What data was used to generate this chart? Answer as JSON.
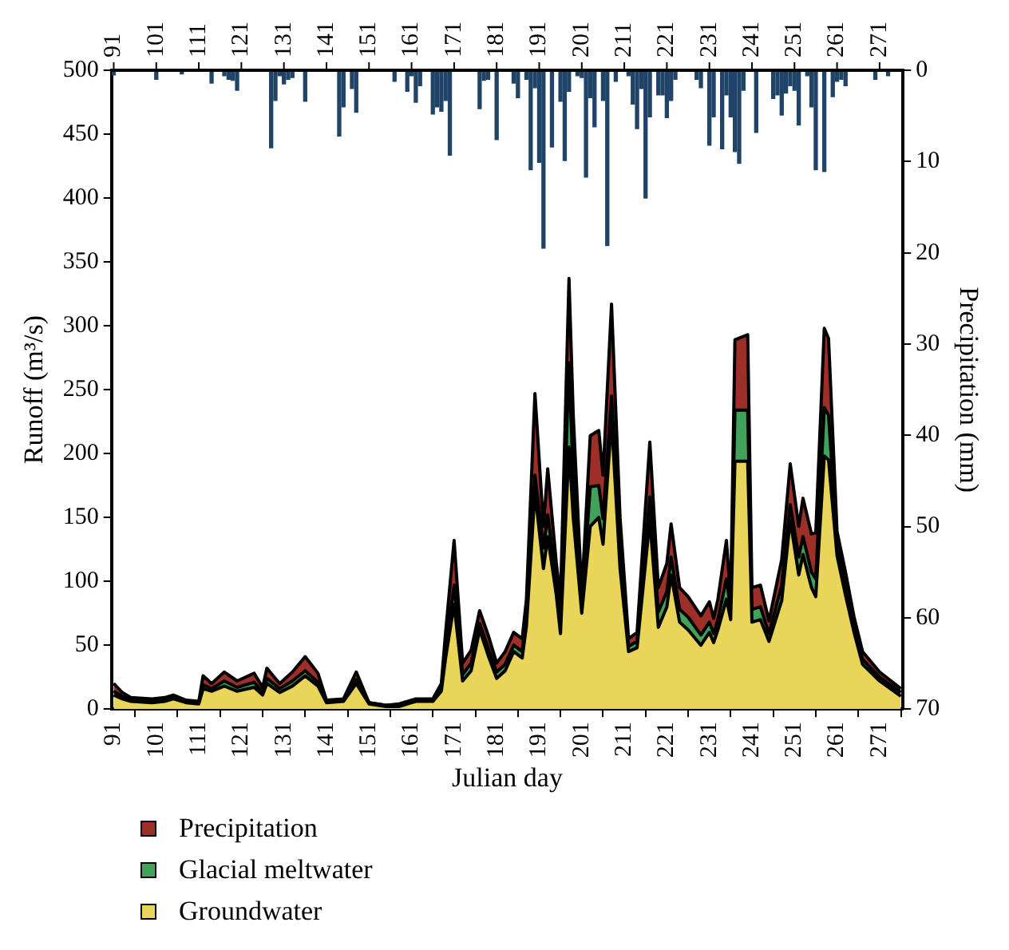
{
  "chart_data": {
    "type": "area",
    "xlabel": "Julian day",
    "ylabel": "Runoff (m³/s)",
    "y2label": "Precipitation (mm)",
    "stacked": true,
    "marker": "none",
    "legend": "bottom",
    "grid": false,
    "xlim": [
      90.5,
      276.5
    ],
    "xticks": [
      91,
      101,
      111,
      121,
      131,
      141,
      151,
      161,
      171,
      181,
      191,
      201,
      211,
      221,
      231,
      241,
      251,
      261,
      271
    ],
    "x2lim": [
      90.5,
      276.5
    ],
    "x2ticks": [
      91,
      101,
      111,
      121,
      131,
      141,
      151,
      161,
      171,
      181,
      191,
      201,
      211,
      221,
      231,
      241,
      251,
      261,
      271
    ],
    "ylim": [
      0,
      500
    ],
    "yticks": [
      0,
      50,
      100,
      150,
      200,
      250,
      300,
      350,
      400,
      450,
      500
    ],
    "y2lim": [
      70,
      0
    ],
    "y2ticks": [
      0,
      10,
      20,
      30,
      40,
      50,
      60,
      70
    ],
    "x": [
      91,
      93,
      95,
      100,
      103,
      105,
      108,
      111,
      112,
      114,
      117,
      120,
      124,
      126,
      127,
      130,
      133,
      136,
      139,
      141,
      145,
      148,
      151,
      155,
      158,
      162,
      166,
      168,
      169,
      171,
      173,
      175,
      177,
      179,
      181,
      183,
      185,
      187,
      188,
      190,
      192,
      193,
      195,
      196,
      198,
      199,
      201,
      203,
      205,
      206,
      208,
      210,
      212,
      214,
      217,
      219,
      221,
      222,
      224,
      226,
      229,
      231,
      232,
      233,
      235,
      236,
      237,
      240,
      241,
      243,
      245,
      248,
      250,
      252,
      253,
      255,
      256,
      258,
      259,
      261,
      263,
      265,
      267,
      271,
      276
    ],
    "series": [
      {
        "name": "Groundwater",
        "color": "#e8d55a",
        "values": [
          11,
          8,
          6,
          5,
          6,
          8,
          5,
          4,
          16,
          14,
          18,
          14,
          17,
          11,
          20,
          13,
          18,
          26,
          18,
          5,
          6,
          20,
          4,
          2,
          2,
          6,
          6,
          14,
          40,
          82,
          22,
          30,
          62,
          42,
          24,
          30,
          45,
          40,
          65,
          170,
          110,
          135,
          90,
          59,
          205,
          150,
          75,
          143,
          150,
          129,
          227,
          110,
          45,
          48,
          148,
          64,
          80,
          105,
          68,
          62,
          50,
          60,
          52,
          62,
          86,
          70,
          194,
          194,
          68,
          70,
          53,
          85,
          148,
          105,
          121,
          95,
          88,
          198,
          195,
          120,
          89,
          60,
          35,
          22,
          10
        ]
      },
      {
        "name": "Glacial meltwater",
        "color": "#3fa35a",
        "values": [
          3,
          2,
          1,
          1,
          1,
          1,
          1,
          1,
          3,
          2,
          4,
          3,
          4,
          2,
          4,
          3,
          4,
          4,
          3,
          1,
          1,
          3,
          1,
          1,
          1,
          1,
          1,
          3,
          8,
          15,
          5,
          6,
          5,
          6,
          5,
          5,
          5,
          5,
          8,
          13,
          16,
          17,
          10,
          8,
          66,
          30,
          6,
          31,
          25,
          20,
          18,
          15,
          4,
          5,
          18,
          12,
          12,
          14,
          10,
          10,
          8,
          8,
          7,
          8,
          16,
          8,
          40,
          40,
          10,
          10,
          6,
          12,
          12,
          14,
          14,
          12,
          14,
          38,
          35,
          10,
          8,
          5,
          4,
          3,
          3
        ]
      },
      {
        "name": "Precipitation",
        "color": "#9e2f28",
        "values": [
          6,
          3,
          2,
          2,
          2,
          2,
          1,
          1,
          7,
          4,
          7,
          5,
          7,
          4,
          8,
          4,
          7,
          11,
          7,
          1,
          1,
          6,
          0,
          0,
          1,
          1,
          1,
          3,
          12,
          35,
          9,
          10,
          10,
          10,
          7,
          10,
          10,
          10,
          13,
          64,
          17,
          36,
          15,
          19,
          66,
          50,
          9,
          40,
          43,
          34,
          72,
          25,
          6,
          7,
          43,
          19,
          22,
          26,
          17,
          16,
          15,
          16,
          12,
          16,
          30,
          8,
          55,
          59,
          17,
          17,
          10,
          20,
          32,
          24,
          30,
          30,
          36,
          62,
          60,
          9,
          10,
          7,
          6,
          4,
          3
        ]
      },
      {
        "type": "bar",
        "axis": "y2",
        "color": "#1f4468",
        "x": [
          91,
          101,
          107,
          114,
          117,
          118,
          119,
          120,
          128,
          129,
          130,
          131,
          132,
          133,
          136,
          144,
          145,
          147,
          148,
          157,
          160,
          161,
          162,
          163,
          166,
          167,
          168,
          169,
          170,
          177,
          178,
          179,
          181,
          185,
          186,
          188,
          189,
          190,
          191,
          192,
          194,
          196,
          197,
          198,
          200,
          201,
          202,
          203,
          204,
          206,
          207,
          209,
          212,
          213,
          214,
          215,
          216,
          217,
          219,
          220,
          221,
          222,
          223,
          228,
          229,
          231,
          232,
          234,
          235,
          236,
          237,
          238,
          239,
          242,
          246,
          247,
          248,
          249,
          250,
          251,
          252,
          254,
          255,
          256,
          258,
          260,
          261,
          262,
          263,
          270,
          273
        ],
        "values": [
          0.5,
          1.0,
          0.4,
          1.4,
          0.6,
          1.0,
          1.1,
          2.2,
          8.5,
          3.3,
          0.6,
          1.5,
          1.0,
          0.8,
          3.4,
          7.2,
          4.0,
          2.0,
          4.6,
          1.2,
          2.3,
          0.6,
          3.5,
          1.7,
          4.8,
          4.0,
          4.5,
          3.3,
          9.3,
          4.2,
          1.1,
          1.0,
          7.6,
          1.4,
          3.0,
          1.0,
          10.9,
          1.9,
          10.1,
          19.5,
          8.4,
          3.4,
          9.9,
          2.3,
          0.6,
          0.8,
          11.7,
          3.0,
          6.2,
          3.3,
          19.2,
          1.2,
          0.6,
          3.7,
          6.4,
          2.0,
          14.0,
          5.1,
          2.7,
          2.7,
          5.2,
          3.3,
          1.0,
          1.0,
          1.9,
          8.2,
          5.1,
          8.6,
          2.7,
          5.1,
          8.9,
          10.2,
          2.2,
          6.8,
          3.1,
          2.7,
          4.9,
          2.5,
          1.7,
          2.2,
          6.0,
          0.6,
          4.0,
          10.9,
          11.1,
          2.9,
          1.2,
          1.0,
          1.7,
          1.0,
          0.6
        ]
      }
    ]
  }
}
